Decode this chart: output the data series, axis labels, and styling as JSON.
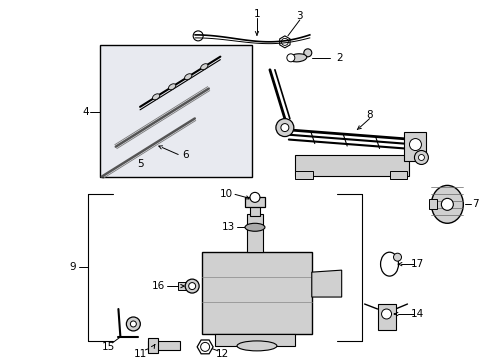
{
  "background_color": "#ffffff",
  "line_color": "#000000",
  "text_color": "#000000",
  "gray_fill": "#d0d0d0",
  "light_fill": "#e8e8e8",
  "fig_width": 4.89,
  "fig_height": 3.6,
  "dpi": 100
}
